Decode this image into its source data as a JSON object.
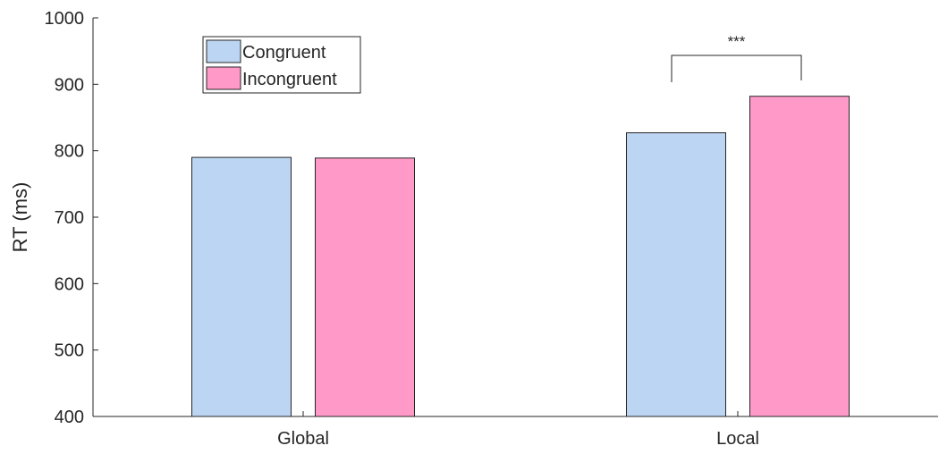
{
  "chart_data": {
    "type": "bar",
    "categories": [
      "Global",
      "Local"
    ],
    "series": [
      {
        "name": "Congruent",
        "values": [
          790,
          827
        ],
        "color": "#bcd5f2"
      },
      {
        "name": "Incongruent",
        "values": [
          789,
          882
        ],
        "color": "#ff99c8"
      }
    ],
    "ylabel": "RT (ms)",
    "xlabel": "",
    "ylim": [
      400,
      1000
    ],
    "yticks": [
      400,
      500,
      600,
      700,
      800,
      900,
      1000
    ],
    "grid": false,
    "legend": {
      "placement": "top-left"
    },
    "annotations": [
      {
        "text": "***",
        "category": "Local",
        "between": [
          "Congruent",
          "Incongruent"
        ]
      }
    ]
  }
}
